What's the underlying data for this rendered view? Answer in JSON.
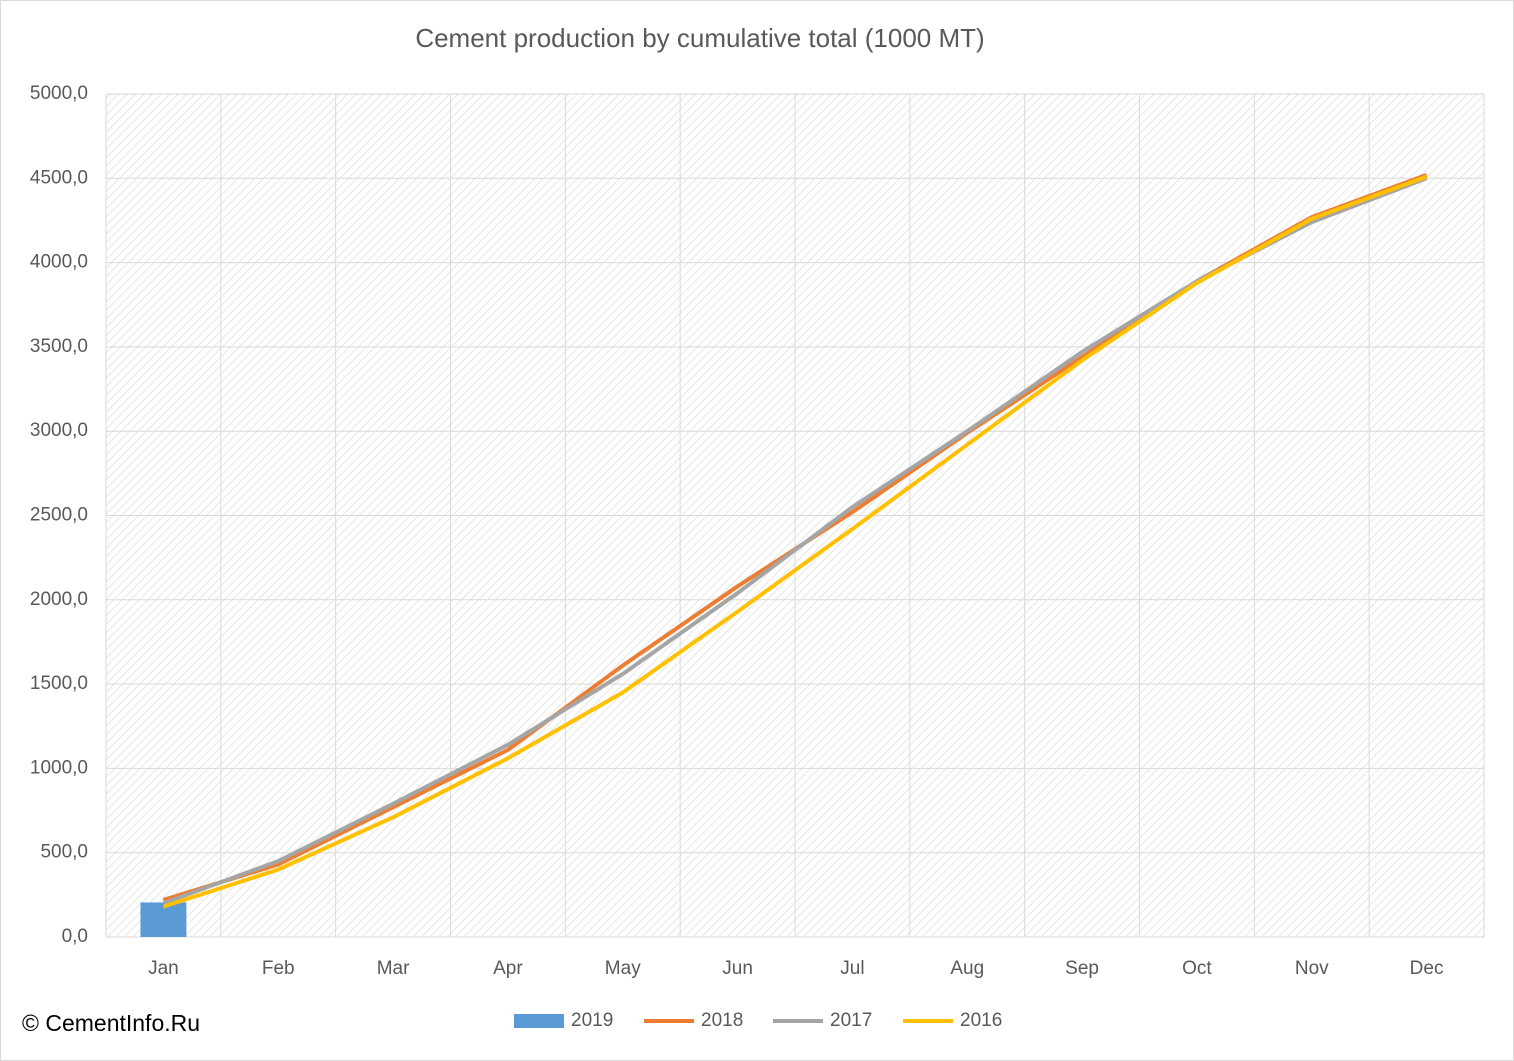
{
  "chart_data": {
    "type": "line",
    "title": "Cement production by cumulative total (1000 MT)",
    "source": "© CementInfo.Ru",
    "categories": [
      "Jan",
      "Feb",
      "Mar",
      "Apr",
      "May",
      "Jun",
      "Jul",
      "Aug",
      "Sep",
      "Oct",
      "Nov",
      "Dec"
    ],
    "series": [
      {
        "name": "2019",
        "type": "bar",
        "color": "#5b9bd5",
        "values": [
          205,
          null,
          null,
          null,
          null,
          null,
          null,
          null,
          null,
          null,
          null,
          null
        ]
      },
      {
        "name": "2018",
        "type": "line",
        "color": "#ed7d31",
        "values": [
          220,
          430,
          770,
          1110,
          1610,
          2080,
          2520,
          2990,
          3440,
          3890,
          4270,
          4520
        ]
      },
      {
        "name": "2017",
        "type": "line",
        "color": "#a5a5a5",
        "values": [
          200,
          450,
          790,
          1140,
          1560,
          2040,
          2550,
          3000,
          3470,
          3890,
          4240,
          4500
        ]
      },
      {
        "name": "2016",
        "type": "line",
        "color": "#ffc000",
        "values": [
          180,
          400,
          710,
          1060,
          1450,
          1930,
          2420,
          2920,
          3420,
          3880,
          4260,
          4510
        ]
      }
    ],
    "ylim": [
      0,
      5000
    ],
    "yticks": [
      {
        "value": 0,
        "label": "0,0"
      },
      {
        "value": 500,
        "label": "500,0"
      },
      {
        "value": 1000,
        "label": "1000,0"
      },
      {
        "value": 1500,
        "label": "1500,0"
      },
      {
        "value": 2000,
        "label": "2000,0"
      },
      {
        "value": 2500,
        "label": "2500,0"
      },
      {
        "value": 3000,
        "label": "3000,0"
      },
      {
        "value": 3500,
        "label": "3500,0"
      },
      {
        "value": 4000,
        "label": "4000,0"
      },
      {
        "value": 4500,
        "label": "4500,0"
      },
      {
        "value": 5000,
        "label": "5000,0"
      }
    ],
    "grid": true,
    "legend": "bottom"
  }
}
